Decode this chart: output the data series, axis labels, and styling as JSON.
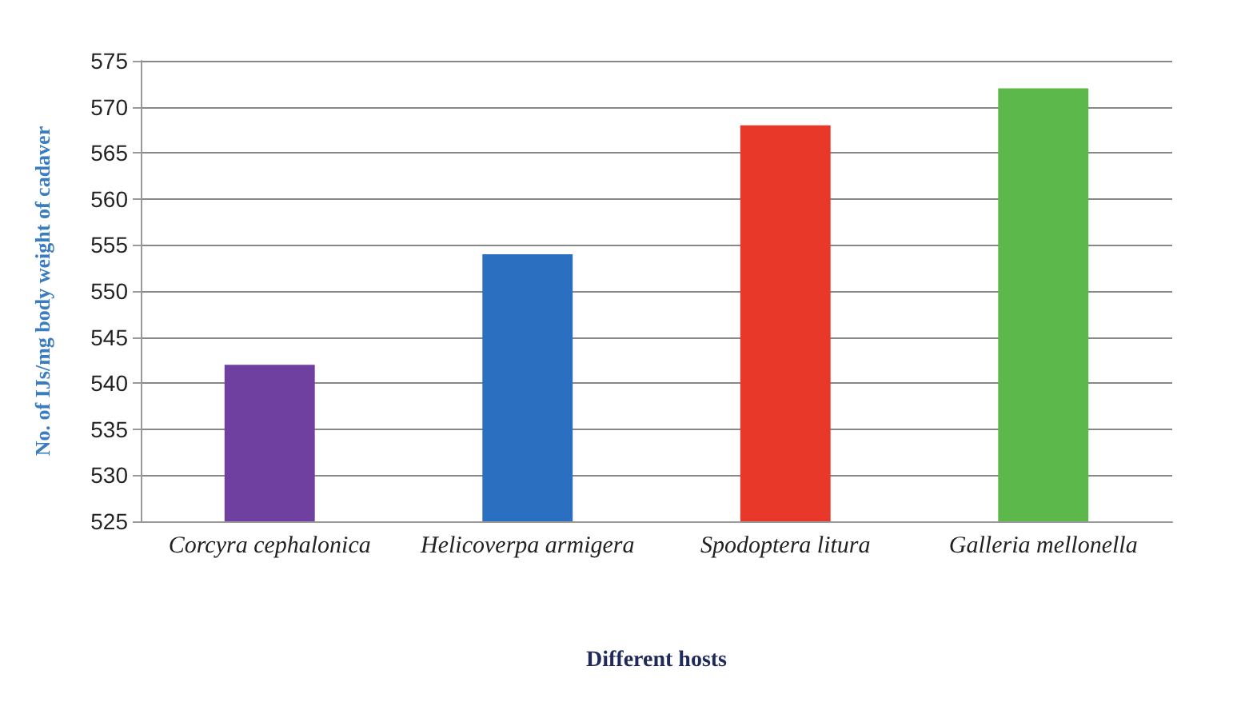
{
  "chart_data": {
    "type": "bar",
    "xlabel": "Different hosts",
    "ylabel": "No. of IJs/mg body weight of cadaver",
    "categories": [
      "Corcyra cephalonica",
      "Helicoverpa armigera",
      "Spodoptera litura",
      "Galleria mellonella"
    ],
    "values": [
      542,
      554,
      568,
      572
    ],
    "colors": [
      "#7040a0",
      "#2a6fc0",
      "#e8382a",
      "#5cb84a"
    ],
    "ylim": [
      525,
      575
    ],
    "yticks": [
      525,
      530,
      535,
      540,
      545,
      550,
      555,
      560,
      565,
      570,
      575
    ],
    "grid": "y"
  }
}
